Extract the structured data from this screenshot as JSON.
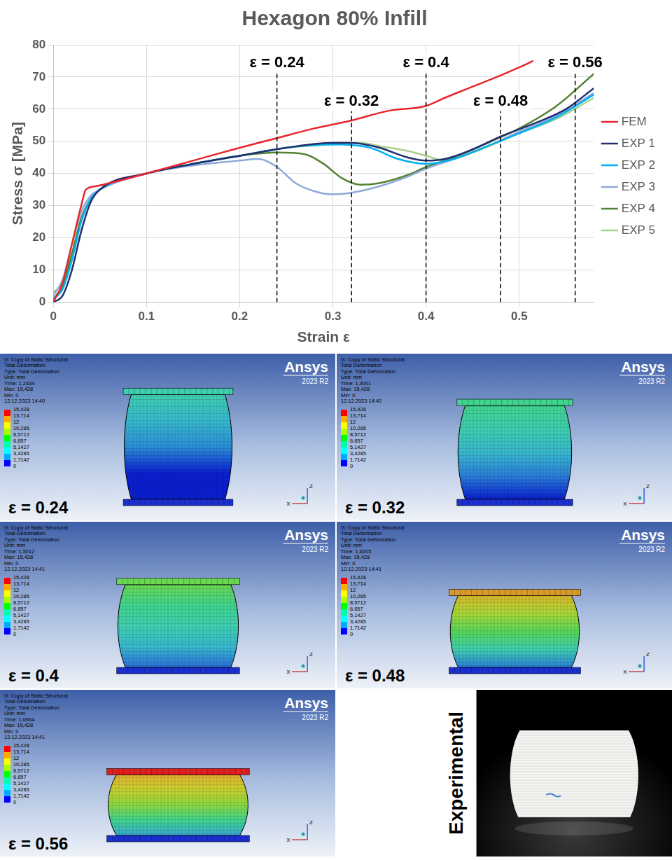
{
  "chart_data": {
    "type": "line",
    "title": "Hexagon 80% Infill",
    "x_label": "Strain ε",
    "y_label": "Stress σ [MPa]",
    "xlim": [
      0,
      0.58
    ],
    "xticks": [
      0,
      0.1,
      0.2,
      0.3,
      0.4,
      0.5
    ],
    "ylim": [
      0,
      80
    ],
    "yticks": [
      0,
      10,
      20,
      30,
      40,
      50,
      60,
      70,
      80
    ],
    "grid": true,
    "legend": "right",
    "series": [
      {
        "name": "FEM",
        "color": "#e8262b",
        "x": [
          0,
          0.01,
          0.02,
          0.03,
          0.035,
          0.045,
          0.06,
          0.1,
          0.15,
          0.2,
          0.24,
          0.28,
          0.32,
          0.36,
          0.4,
          0.42,
          0.45,
          0.48,
          0.5,
          0.515
        ],
        "values": [
          0,
          6,
          18,
          30,
          35,
          36,
          37,
          40,
          44,
          48,
          51,
          54,
          56.5,
          59.5,
          61,
          63.5,
          67,
          70.5,
          73,
          75
        ]
      },
      {
        "name": "EXP 1",
        "color": "#1f2e6e",
        "x": [
          0,
          0.01,
          0.02,
          0.03,
          0.04,
          0.05,
          0.1,
          0.15,
          0.2,
          0.25,
          0.3,
          0.32,
          0.35,
          0.38,
          0.4,
          0.42,
          0.45,
          0.48,
          0.52,
          0.55,
          0.58
        ],
        "values": [
          0,
          2,
          10,
          22,
          31,
          35,
          40,
          43,
          45.5,
          48,
          49.5,
          49.5,
          48,
          45,
          44,
          44.5,
          47.5,
          51.5,
          56,
          60,
          66.5
        ]
      },
      {
        "name": "EXP 2",
        "color": "#00b0f0",
        "x": [
          0,
          0.01,
          0.02,
          0.03,
          0.04,
          0.05,
          0.1,
          0.15,
          0.2,
          0.25,
          0.3,
          0.34,
          0.37,
          0.4,
          0.43,
          0.47,
          0.5,
          0.54,
          0.58
        ],
        "values": [
          1,
          4,
          13,
          25,
          32,
          35,
          40,
          43,
          45.5,
          48,
          49,
          48,
          44.5,
          43,
          44.5,
          49,
          52.5,
          57.5,
          64.5
        ]
      },
      {
        "name": "EXP 3",
        "color": "#8ea9db",
        "x": [
          0,
          0.01,
          0.02,
          0.03,
          0.04,
          0.05,
          0.1,
          0.15,
          0.2,
          0.22,
          0.24,
          0.26,
          0.28,
          0.3,
          0.32,
          0.35,
          0.38,
          0.4,
          0.43,
          0.47,
          0.5,
          0.54,
          0.58
        ],
        "values": [
          2,
          7,
          18,
          28,
          33,
          35,
          40,
          42.5,
          44,
          44.5,
          42,
          37,
          34.5,
          33.5,
          34,
          36,
          39,
          41.5,
          44.5,
          49,
          53,
          58,
          65
        ]
      },
      {
        "name": "EXP 4",
        "color": "#548235",
        "x": [
          0,
          0.01,
          0.02,
          0.03,
          0.04,
          0.05,
          0.1,
          0.15,
          0.2,
          0.24,
          0.27,
          0.29,
          0.31,
          0.33,
          0.35,
          0.38,
          0.4,
          0.43,
          0.47,
          0.5,
          0.54,
          0.58
        ],
        "values": [
          1,
          5,
          15,
          26,
          32,
          35,
          40,
          43,
          45.5,
          46.5,
          46,
          43,
          38.5,
          36.5,
          37,
          39.5,
          42,
          45,
          50,
          54,
          61,
          71
        ]
      },
      {
        "name": "EXP 5",
        "color": "#a9d18e",
        "x": [
          0,
          0.01,
          0.02,
          0.03,
          0.04,
          0.05,
          0.1,
          0.15,
          0.2,
          0.25,
          0.3,
          0.33,
          0.35,
          0.38,
          0.4,
          0.42,
          0.45,
          0.5,
          0.54,
          0.58
        ],
        "values": [
          3,
          6,
          15,
          26,
          32,
          35,
          40,
          43,
          45.5,
          48,
          49,
          49.5,
          48.5,
          47,
          45.5,
          44,
          46.5,
          52.5,
          57,
          63.5
        ]
      }
    ],
    "annotations": [
      {
        "x": 0.24,
        "label": "ε = 0.24",
        "line_style": "dashed"
      },
      {
        "x": 0.32,
        "label": "ε = 0.32",
        "line_style": "dashed"
      },
      {
        "x": 0.4,
        "label": "ε = 0.4",
        "line_style": "dashed"
      },
      {
        "x": 0.48,
        "label": "ε = 0.48",
        "line_style": "dashed"
      },
      {
        "x": 0.56,
        "label": "ε = 0.56",
        "line_style": "dashed"
      }
    ]
  },
  "panels": [
    {
      "strain": 0.24,
      "label": "ε = 0.24",
      "logo": "Ansys",
      "version": "2023 R2",
      "axes": [
        "Z",
        "X"
      ],
      "header": [
        "G: Copy of Static Structural",
        "Total Deformation",
        "Type: Total Deformation",
        "Unit: mm",
        "Time: 1,2334",
        "Max: 15,428",
        "Min: 0",
        "12.12.2023 14:40"
      ],
      "colorbar": [
        "15,428",
        "13,714",
        "12",
        "10,285",
        "8,5712",
        "6,857",
        "5,1427",
        "3,4285",
        "1,7142",
        "0"
      ]
    },
    {
      "strain": 0.32,
      "label": "ε = 0.32",
      "logo": "Ansys",
      "version": "2023 R2",
      "axes": [
        "Z",
        "X"
      ],
      "header": [
        "G: Copy of Static Structural",
        "Total Deformation",
        "Type: Total Deformation",
        "Unit: mm",
        "Time: 1,4001",
        "Max: 15,428",
        "Min: 0",
        "12.12.2023 14:40"
      ],
      "colorbar": [
        "15,428",
        "13,714",
        "12",
        "10,285",
        "8,5712",
        "6,857",
        "5,1427",
        "3,4285",
        "1,7142",
        "0"
      ]
    },
    {
      "strain": 0.4,
      "label": "ε = 0.4",
      "logo": "Ansys",
      "version": "2023 R2",
      "axes": [
        "Z",
        "X"
      ],
      "header": [
        "G: Copy of Static Structural",
        "Total Deformation",
        "Type: Total Deformation",
        "Unit: mm",
        "Time: 1,5012",
        "Max: 15,428",
        "Min: 0",
        "12.12.2023 14:41"
      ],
      "colorbar": [
        "15,428",
        "13,714",
        "12",
        "10,285",
        "8,5712",
        "6,857",
        "5,1427",
        "3,4285",
        "1,7142",
        "0"
      ]
    },
    {
      "strain": 0.48,
      "label": "ε = 0.48",
      "logo": "Ansys",
      "version": "2023 R2",
      "axes": [
        "Z",
        "X"
      ],
      "header": [
        "G: Copy of Static Structural",
        "Total Deformation",
        "Type: Total Deformation",
        "Unit: mm",
        "Time: 1,6005",
        "Max: 15,428",
        "Min: 0",
        "12.12.2023 14:41"
      ],
      "colorbar": [
        "15,428",
        "13,714",
        "12",
        "10,285",
        "8,5712",
        "6,857",
        "5,1427",
        "3,4285",
        "1,7142",
        "0"
      ]
    },
    {
      "strain": 0.56,
      "label": "ε = 0.56",
      "logo": "Ansys",
      "version": "2023 R2",
      "axes": [
        "Z",
        "X"
      ],
      "header": [
        "G: Copy of Static Structural",
        "Total Deformation",
        "Type: Total Deformation",
        "Unit: mm",
        "Time: 1,6964",
        "Max: 15,428",
        "Min: 0",
        "12.12.2023 14:41"
      ],
      "colorbar": [
        "15,428",
        "13,714",
        "12",
        "10,285",
        "8,5712",
        "6,857",
        "5,1427",
        "3,4285",
        "1,7142",
        "0"
      ]
    }
  ],
  "experimental": {
    "label": "Experimental"
  }
}
